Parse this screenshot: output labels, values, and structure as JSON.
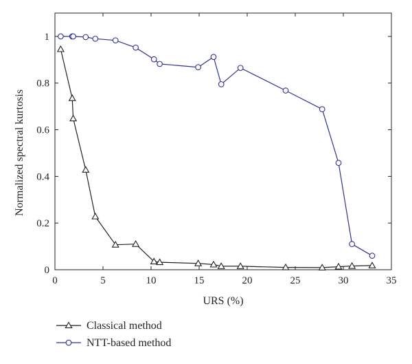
{
  "chart_data": {
    "type": "line",
    "xlabel": "URS (%)",
    "ylabel": "Normalized spectral kurtosis",
    "xlim": [
      0,
      35
    ],
    "ylim": [
      0,
      1.1
    ],
    "xticks": [
      0,
      5,
      10,
      15,
      20,
      25,
      30,
      35
    ],
    "yticks": [
      0,
      0.2,
      0.4,
      0.6,
      0.8,
      1
    ],
    "xtick_labels": [
      "0",
      "5",
      "10",
      "15",
      "20",
      "25",
      "30",
      "35"
    ],
    "ytick_labels": [
      "0",
      "0.2",
      "0.4",
      "0.6",
      "0.8",
      "1"
    ],
    "grid": false,
    "legend_position": "below-left",
    "series": [
      {
        "name": "Classical method",
        "color": "#231f20",
        "marker": "triangle",
        "x": [
          0.6,
          1.8,
          1.9,
          3.2,
          4.2,
          6.3,
          8.4,
          10.3,
          10.9,
          14.9,
          16.5,
          17.3,
          19.3,
          24.0,
          27.8,
          29.5,
          30.9,
          33.0
        ],
        "y": [
          0.945,
          0.735,
          0.648,
          0.428,
          0.228,
          0.107,
          0.11,
          0.035,
          0.032,
          0.027,
          0.022,
          0.015,
          0.015,
          0.01,
          0.009,
          0.013,
          0.016,
          0.018
        ]
      },
      {
        "name": "NTT-based method",
        "color": "#2e3192",
        "marker": "circle",
        "x": [
          0.6,
          1.8,
          1.9,
          3.2,
          4.2,
          6.3,
          8.4,
          10.3,
          10.9,
          14.9,
          16.5,
          17.3,
          19.3,
          24.0,
          27.8,
          29.5,
          30.9,
          33.0
        ],
        "y": [
          1.0,
          1.0,
          1.0,
          0.997,
          0.99,
          0.983,
          0.952,
          0.902,
          0.882,
          0.868,
          0.912,
          0.795,
          0.865,
          0.768,
          0.688,
          0.458,
          0.11,
          0.06
        ]
      }
    ]
  }
}
